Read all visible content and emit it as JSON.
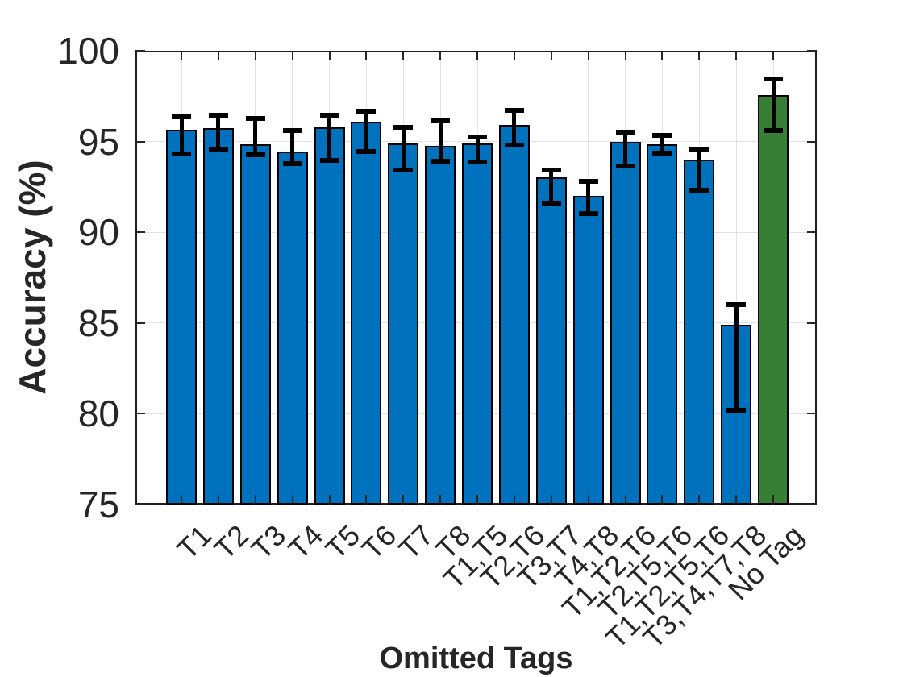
{
  "chart_data": {
    "type": "bar",
    "title": "",
    "xlabel": "Omitted Tags",
    "ylabel": "Accuracy (%)",
    "ylim": [
      75,
      100
    ],
    "yticks": [
      75,
      80,
      85,
      90,
      95,
      100
    ],
    "grid": true,
    "legend": "none",
    "x_tick_rotation": 45,
    "categories": [
      "T1",
      "T2",
      "T3",
      "T4",
      "T5",
      "T6",
      "T7",
      "T8",
      "T1,T5",
      "T2,T6",
      "T3,T7",
      "T4,T8",
      "T1,T2,T6",
      "T2,T5,T6",
      "T1,T2,T5,T6",
      "T3,T4,T7,T8",
      "No Tag"
    ],
    "values": [
      95.65,
      95.75,
      94.85,
      94.45,
      95.8,
      96.1,
      94.9,
      94.75,
      94.9,
      95.9,
      93.05,
      92.0,
      95.0,
      94.85,
      94.0,
      84.9,
      97.55
    ],
    "error_high": [
      96.35,
      96.45,
      96.25,
      95.6,
      96.45,
      96.65,
      95.8,
      96.2,
      95.25,
      96.7,
      93.45,
      92.8,
      95.5,
      95.35,
      94.6,
      86.0,
      98.45
    ],
    "error_low": [
      94.3,
      94.6,
      94.25,
      93.8,
      93.95,
      94.45,
      93.45,
      93.9,
      93.85,
      94.8,
      91.55,
      91.05,
      93.65,
      94.35,
      92.3,
      80.2,
      95.6
    ],
    "bar_colors": [
      "#0072BD",
      "#0072BD",
      "#0072BD",
      "#0072BD",
      "#0072BD",
      "#0072BD",
      "#0072BD",
      "#0072BD",
      "#0072BD",
      "#0072BD",
      "#0072BD",
      "#0072BD",
      "#0072BD",
      "#0072BD",
      "#0072BD",
      "#0072BD",
      "#377F34"
    ],
    "colors": {
      "bar": "#0072BD",
      "highlight_bar": "#377F34",
      "bar_edge": "#000000",
      "error_bar": "#000000",
      "grid": "#e2e2e2",
      "axis": "#1f1f1f",
      "text": "#262626"
    }
  }
}
